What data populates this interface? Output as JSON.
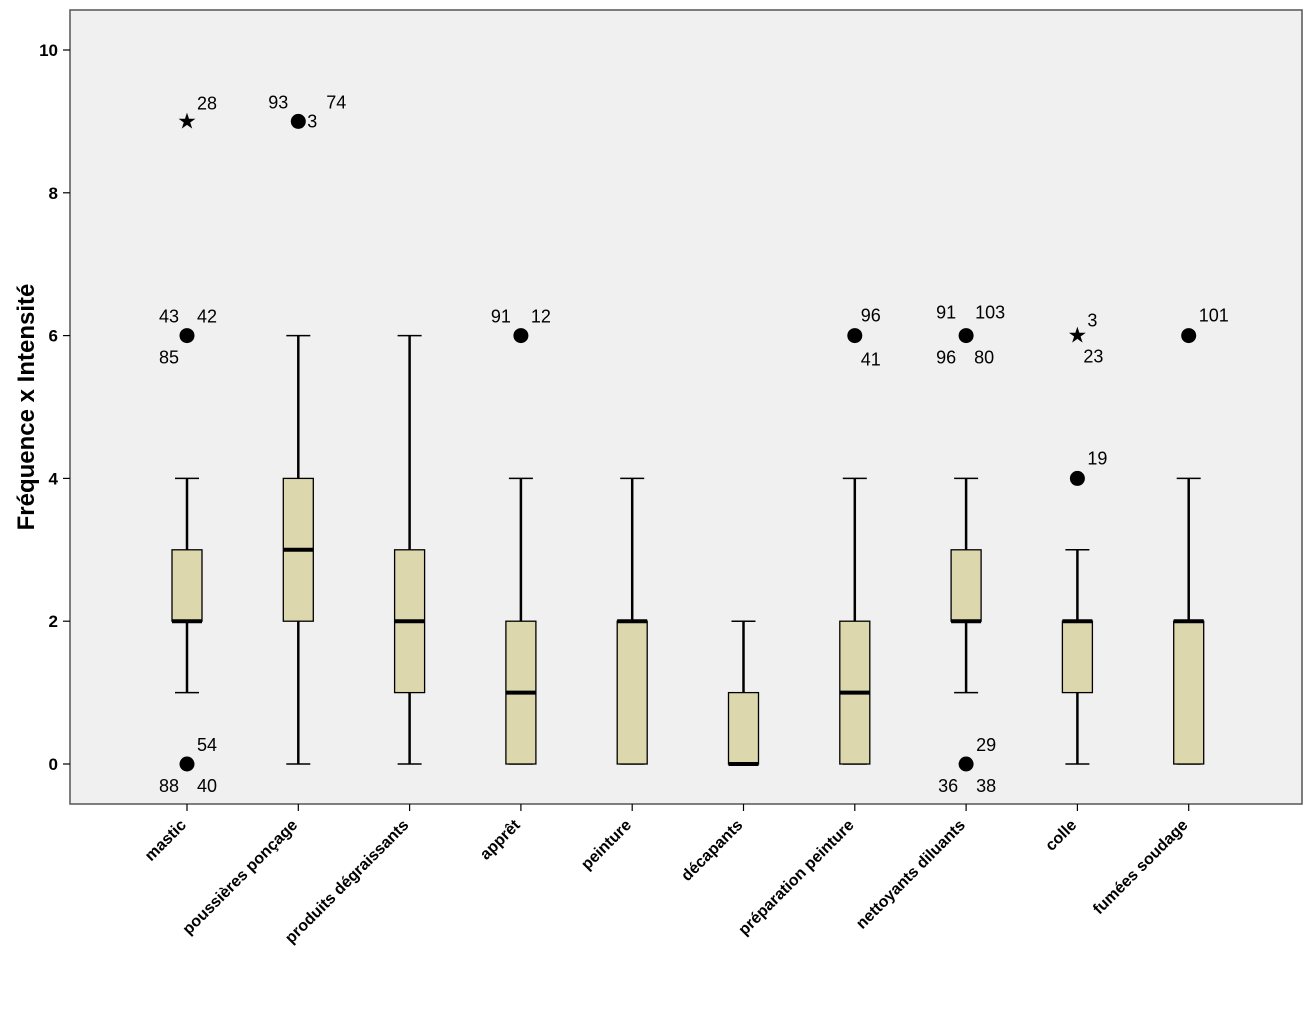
{
  "chart_data": {
    "type": "boxplot",
    "title": "",
    "xlabel": "",
    "ylabel": "Fréquence x Intensité",
    "ylim": [
      -0.55,
      10.6
    ],
    "yticks": [
      0,
      2,
      4,
      6,
      8,
      10
    ],
    "grid": false,
    "colors": {
      "box_fill": "#ddd7ad",
      "plot_bg": "#f0f0f0",
      "line": "#000000"
    },
    "categories": [
      "mastic",
      "poussières ponçage",
      "produits dégraissants",
      "apprêt",
      "peinture",
      "décapants",
      "préparation peinture",
      "nettoyants diluants",
      "colle",
      "fumées soudage"
    ],
    "boxes": [
      {
        "category": "mastic",
        "whisker_low": 1,
        "q1": 2,
        "median": 2,
        "q3": 3,
        "whisker_high": 4,
        "outliers": [
          {
            "y": 9,
            "marker": "star",
            "labels": [
              "28"
            ]
          },
          {
            "y": 6,
            "marker": "circle",
            "labels": [
              "43",
              "42",
              "85"
            ]
          },
          {
            "y": 0,
            "marker": "circle",
            "labels": [
              "54",
              "88",
              "40"
            ]
          }
        ]
      },
      {
        "category": "poussières ponçage",
        "whisker_low": 0,
        "q1": 2,
        "median": 3,
        "q3": 4,
        "whisker_high": 6,
        "outliers": [
          {
            "y": 9,
            "marker": "circle",
            "labels": [
              "93",
              "3",
              "74"
            ]
          }
        ]
      },
      {
        "category": "produits dégraissants",
        "whisker_low": 0,
        "q1": 1,
        "median": 2,
        "q3": 3,
        "whisker_high": 6,
        "outliers": []
      },
      {
        "category": "apprêt",
        "whisker_low": 0,
        "q1": 0,
        "median": 1,
        "q3": 2,
        "whisker_high": 4,
        "outliers": [
          {
            "y": 6,
            "marker": "circle",
            "labels": [
              "91",
              "12"
            ]
          }
        ]
      },
      {
        "category": "peinture",
        "whisker_low": 0,
        "q1": 0,
        "median": 2,
        "q3": 2,
        "whisker_high": 4,
        "outliers": []
      },
      {
        "category": "décapants",
        "whisker_low": 0,
        "q1": 0,
        "median": 0,
        "q3": 1,
        "whisker_high": 2,
        "outliers": []
      },
      {
        "category": "préparation peinture",
        "whisker_low": 0,
        "q1": 0,
        "median": 1,
        "q3": 2,
        "whisker_high": 4,
        "outliers": [
          {
            "y": 6,
            "marker": "circle",
            "labels": [
              "96",
              "41"
            ]
          }
        ]
      },
      {
        "category": "nettoyants diluants",
        "whisker_low": 1,
        "q1": 2,
        "median": 2,
        "q3": 3,
        "whisker_high": 4,
        "outliers": [
          {
            "y": 6,
            "marker": "circle",
            "labels": [
              "91",
              "103",
              "96",
              "80"
            ]
          },
          {
            "y": 0,
            "marker": "circle",
            "labels": [
              "29",
              "36",
              "38"
            ]
          }
        ]
      },
      {
        "category": "colle",
        "whisker_low": 0,
        "q1": 1,
        "median": 2,
        "q3": 2,
        "whisker_high": 3,
        "outliers": [
          {
            "y": 6,
            "marker": "star",
            "labels": [
              "3",
              "23"
            ]
          },
          {
            "y": 4,
            "marker": "circle",
            "labels": [
              "19"
            ]
          }
        ]
      },
      {
        "category": "fumées soudage",
        "whisker_low": 0,
        "q1": 0,
        "median": 2,
        "q3": 2,
        "whisker_high": 4,
        "outliers": [
          {
            "y": 6,
            "marker": "circle",
            "labels": [
              "101"
            ]
          }
        ]
      }
    ]
  }
}
